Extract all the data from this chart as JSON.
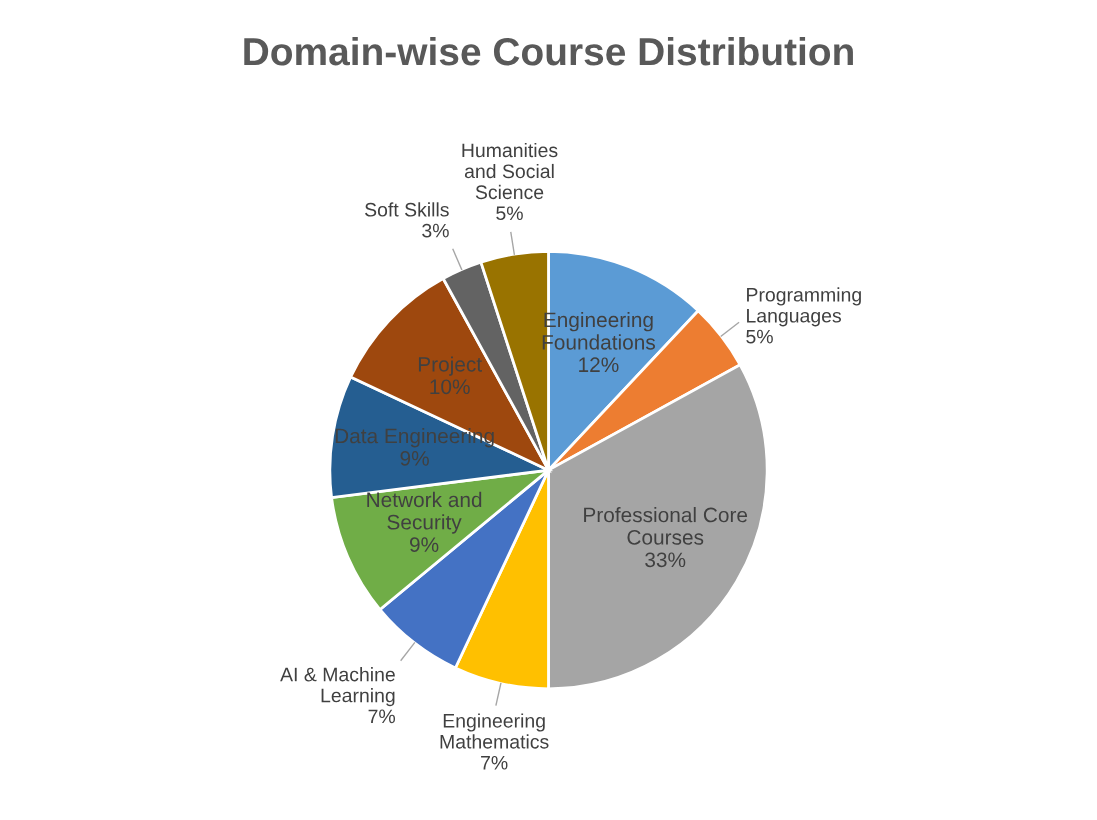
{
  "chart_data": {
    "type": "pie",
    "title": "Domain-wise Course Distribution",
    "categories": [
      "Engineering\nFoundations",
      "Programming\nLanguages",
      "Professional Core\nCourses",
      "Engineering\nMathematics",
      "AI & Machine\nLearning",
      "Network and\nSecurity",
      "Data Engineering",
      "Project",
      "Soft Skills",
      "Humanities\nand Social\nScience"
    ],
    "values": [
      12,
      5,
      33,
      7,
      7,
      9,
      9,
      10,
      3,
      5
    ],
    "colors": [
      "#5b9bd5",
      "#ed7d31",
      "#a5a5a5",
      "#ffc000",
      "#4472c4",
      "#70ad47",
      "#255e91",
      "#9e480e",
      "#636363",
      "#997300"
    ],
    "value_labels": [
      "12%",
      "5%",
      "33%",
      "7%",
      "7%",
      "9%",
      "9%",
      "10%",
      "3%",
      "5%"
    ],
    "legend": false
  }
}
